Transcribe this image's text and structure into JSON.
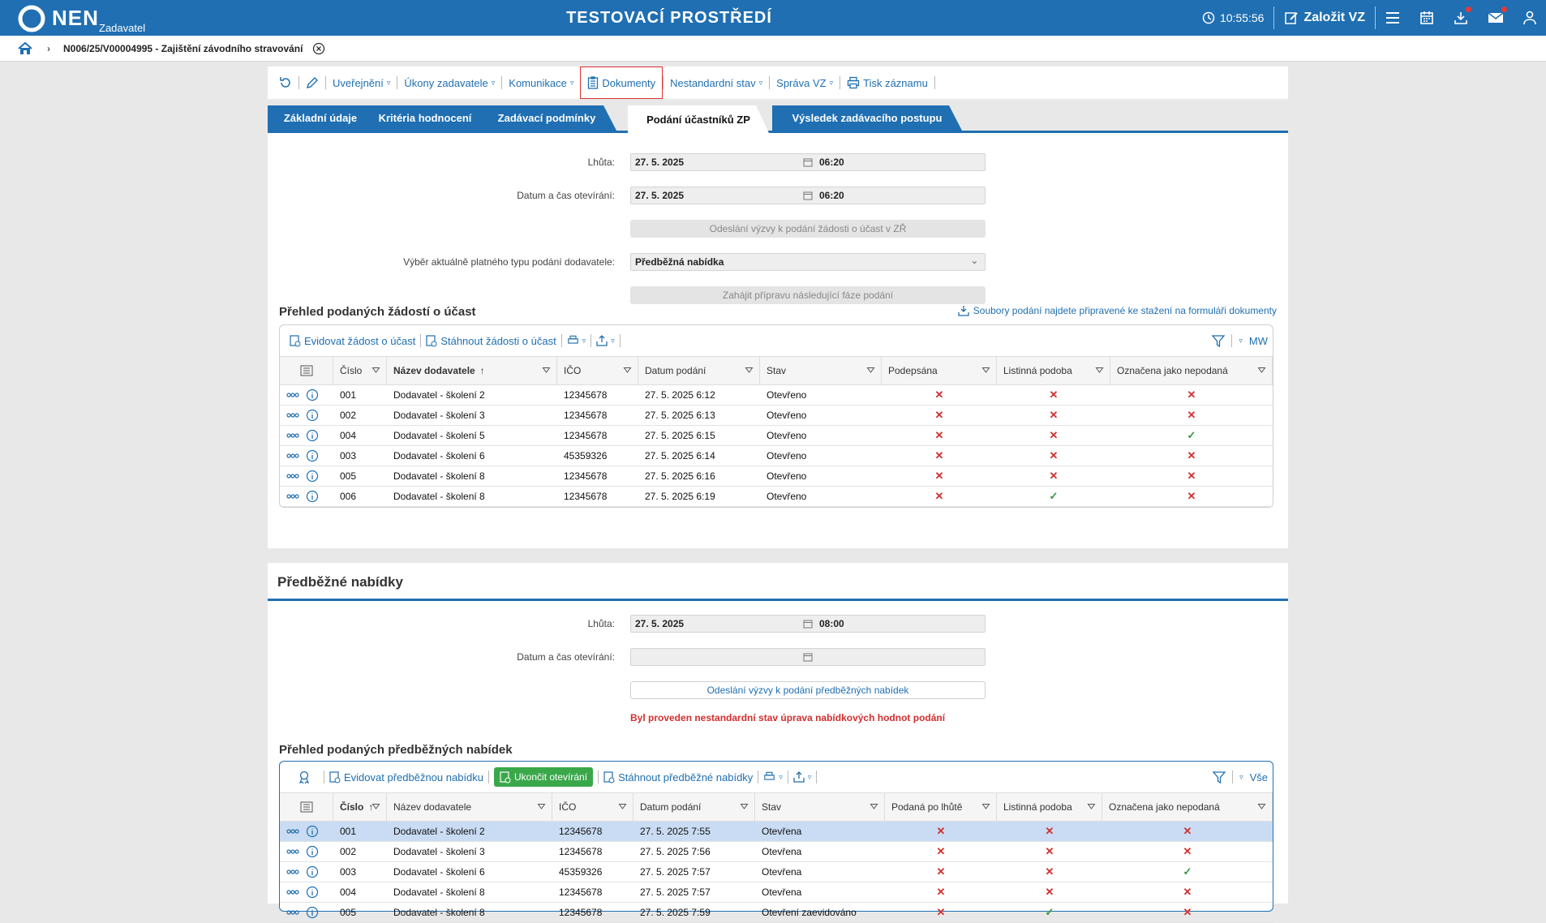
{
  "header": {
    "logo_text": "NEN",
    "logo_sub": "Zadavatel",
    "env_title": "TESTOVACÍ PROSTŘEDÍ",
    "clock": "10:55:56",
    "create_label": "Založit VZ"
  },
  "breadcrumb": {
    "title": "N006/25/V00004995 - Zajištění závodního stravování"
  },
  "actions": {
    "publish": "Uveřejnění",
    "tasks": "Úkony zadavatele",
    "comm": "Komunikace",
    "docs": "Dokumenty",
    "nonstd": "Nestandardní stav",
    "admin": "Správa VZ",
    "print": "Tisk záznamu"
  },
  "tabs": [
    "Základní údaje",
    "Kritéria hodnocení",
    "Zadávací podmínky",
    "Podání účastníků ZP",
    "Výsledek zadávacího postupu"
  ],
  "section1": {
    "deadline_label": "Lhůta:",
    "deadline_date": "27. 5. 2025",
    "deadline_time": "06:20",
    "open_label": "Datum a čas otevírání:",
    "open_date": "27. 5. 2025",
    "open_time": "06:20",
    "send_btn": "Odeslání výzvy k podání žádosti o účast v ZŘ",
    "type_label": "Výběr aktuálně platného typu podání dodavatele:",
    "type_value": "Předběžná nabídka",
    "next_btn": "Zahájit přípravu následující fáze podání",
    "list_title": "Přehled podaných žádostí o účast",
    "files_link": "Soubory podání najdete připravené ke stažení na formuláři dokumenty",
    "tool_add": "Evidovat žádost o účast",
    "tool_download": "Stáhnout žádosti o účast",
    "tool_mw": "MW",
    "columns": [
      "Číslo",
      "Název dodavatele",
      "IČO",
      "Datum podání",
      "Stav",
      "Podepsána",
      "Listinná podoba",
      "Označena jako nepodaná"
    ],
    "rows": [
      {
        "num": "001",
        "name": "Dodavatel - školení 2",
        "ico": "12345678",
        "date": "27. 5. 2025 6:12",
        "state": "Otevřeno",
        "a": "x",
        "b": "x",
        "c": "x"
      },
      {
        "num": "002",
        "name": "Dodavatel - školení 3",
        "ico": "12345678",
        "date": "27. 5. 2025 6:13",
        "state": "Otevřeno",
        "a": "x",
        "b": "x",
        "c": "x"
      },
      {
        "num": "004",
        "name": "Dodavatel - školení 5",
        "ico": "12345678",
        "date": "27. 5. 2025 6:15",
        "state": "Otevřeno",
        "a": "x",
        "b": "x",
        "c": "ok"
      },
      {
        "num": "003",
        "name": "Dodavatel - školení 6",
        "ico": "45359326",
        "date": "27. 5. 2025 6:14",
        "state": "Otevřeno",
        "a": "x",
        "b": "x",
        "c": "x"
      },
      {
        "num": "005",
        "name": "Dodavatel - školení 8",
        "ico": "12345678",
        "date": "27. 5. 2025 6:16",
        "state": "Otevřeno",
        "a": "x",
        "b": "x",
        "c": "x"
      },
      {
        "num": "006",
        "name": "Dodavatel - školení 8",
        "ico": "12345678",
        "date": "27. 5. 2025 6:19",
        "state": "Otevřeno",
        "a": "x",
        "b": "ok",
        "c": "x"
      }
    ]
  },
  "section2": {
    "title": "Předběžné nabídky",
    "deadline_label": "Lhůta:",
    "deadline_date": "27. 5. 2025",
    "deadline_time": "08:00",
    "open_label": "Datum a čas otevírání:",
    "send_btn": "Odeslání výzvy k podání předběžných nabídek",
    "warning": "Byl proveden nestandardní stav úprava nabídkových hodnot podání",
    "list_title": "Přehled podaných předběžných nabídek",
    "tool_add": "Evidovat předběžnou nabídku",
    "tool_finish": "Ukončit otevírání",
    "tool_download": "Stáhnout předběžné nabídky",
    "tool_all": "Vše",
    "columns": [
      "Číslo",
      "Název dodavatele",
      "IČO",
      "Datum podání",
      "Stav",
      "Podaná po lhůtě",
      "Listinná podoba",
      "Označena jako nepodaná"
    ],
    "rows": [
      {
        "num": "001",
        "name": "Dodavatel - školení 2",
        "ico": "12345678",
        "date": "27. 5. 2025 7:55",
        "state": "Otevřena",
        "a": "x",
        "b": "x",
        "c": "x"
      },
      {
        "num": "002",
        "name": "Dodavatel - školení 3",
        "ico": "12345678",
        "date": "27. 5. 2025 7:56",
        "state": "Otevřena",
        "a": "x",
        "b": "x",
        "c": "x"
      },
      {
        "num": "003",
        "name": "Dodavatel - školení 6",
        "ico": "45359326",
        "date": "27. 5. 2025 7:57",
        "state": "Otevřena",
        "a": "x",
        "b": "x",
        "c": "ok"
      },
      {
        "num": "004",
        "name": "Dodavatel - školení 8",
        "ico": "12345678",
        "date": "27. 5. 2025 7:57",
        "state": "Otevřena",
        "a": "x",
        "b": "x",
        "c": "x"
      },
      {
        "num": "005",
        "name": "Dodavatel - školení 8",
        "ico": "12345678",
        "date": "27. 5. 2025 7:59",
        "state": "Otevření zaevidováno",
        "a": "x",
        "b": "ok",
        "c": "x"
      }
    ]
  },
  "colors": {
    "brand": "#1f6fb2",
    "error": "#d32f2f",
    "success": "#2e9a3a",
    "finish_btn": "#3aa84a"
  }
}
